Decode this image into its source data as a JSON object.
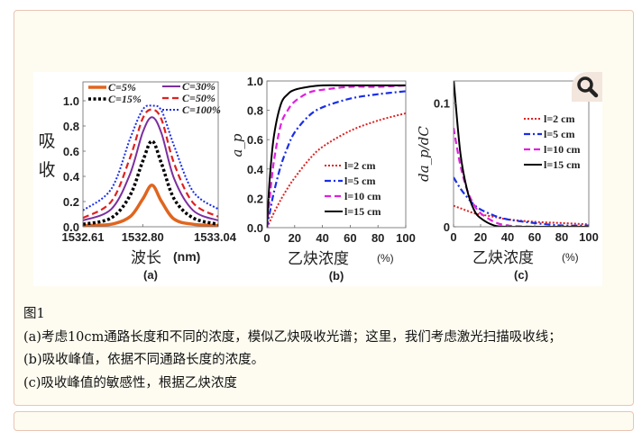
{
  "figure": {
    "zoom_icon": "magnifier-icon",
    "caption_title": "图1",
    "caption_lines": [
      "(a)考虑10cm通路长度和不同的浓度，模似乙炔吸收光谱；这里，我们考虑激光扫描吸收线；",
      "(b)吸收峰值，依据不同通路长度的浓度。",
      "(c)吸收峰值的敏感性，根据乙炔浓度"
    ]
  },
  "chart_data": [
    {
      "type": "line",
      "panel_label": "(a)",
      "xlabel": "波长",
      "xlabel_unit": "(nm)",
      "ylabel": [
        "吸",
        "收"
      ],
      "xlim": [
        1532.61,
        1533.04
      ],
      "ylim": [
        0,
        1.15
      ],
      "xticks": [
        "1532.61",
        "1532.80",
        "1533.04"
      ],
      "xtick_values": [
        1532.61,
        1532.8,
        1533.04
      ],
      "yticks": [
        "0.0",
        "0.2",
        "0.4",
        "0.6",
        "0.8",
        "1.0"
      ],
      "ytick_values": [
        0,
        0.2,
        0.4,
        0.6,
        0.8,
        1.0
      ],
      "legend": "top",
      "x": [
        1532.61,
        1532.7,
        1532.76,
        1532.8,
        1532.83,
        1532.86,
        1532.9,
        1532.96,
        1533.04
      ],
      "series": [
        {
          "name": "C=5%",
          "color": "#e0651f",
          "style": "solid-thick",
          "values": [
            0.01,
            0.02,
            0.08,
            0.22,
            0.33,
            0.2,
            0.06,
            0.02,
            0.01
          ]
        },
        {
          "name": "C=15%",
          "color": "#000000",
          "style": "dotted-thick",
          "values": [
            0.02,
            0.07,
            0.25,
            0.52,
            0.68,
            0.5,
            0.22,
            0.07,
            0.02
          ]
        },
        {
          "name": "C=30%",
          "color": "#7b2f9e",
          "style": "solid",
          "values": [
            0.05,
            0.14,
            0.42,
            0.75,
            0.87,
            0.74,
            0.38,
            0.13,
            0.05
          ]
        },
        {
          "name": "C=50%",
          "color": "#e02020",
          "style": "dashed",
          "values": [
            0.07,
            0.2,
            0.55,
            0.86,
            0.93,
            0.85,
            0.5,
            0.19,
            0.08
          ]
        },
        {
          "name": "C=100%",
          "color": "#1a2ee8",
          "style": "dotted",
          "values": [
            0.13,
            0.3,
            0.7,
            0.93,
            0.96,
            0.92,
            0.64,
            0.28,
            0.14
          ]
        }
      ]
    },
    {
      "type": "line",
      "panel_label": "(b)",
      "xlabel": "乙炔浓度",
      "xlabel_unit": "(%)",
      "ylabel": "a_p",
      "xlim": [
        0,
        100
      ],
      "ylim": [
        0,
        1.0
      ],
      "xticks": [
        "0",
        "20",
        "40",
        "60",
        "80",
        "100"
      ],
      "xtick_values": [
        0,
        20,
        40,
        60,
        80,
        100
      ],
      "yticks": [
        "0.0",
        "0.2",
        "0.4",
        "0.6",
        "0.8",
        "1.0"
      ],
      "ytick_values": [
        0,
        0.2,
        0.4,
        0.6,
        0.8,
        1.0
      ],
      "legend": "bottom-right",
      "x": [
        0,
        2,
        5,
        10,
        15,
        20,
        30,
        40,
        60,
        80,
        100
      ],
      "series": [
        {
          "name": "l=2 cm",
          "color": "#e02020",
          "style": "dotted",
          "values": [
            0,
            0.04,
            0.1,
            0.19,
            0.27,
            0.34,
            0.46,
            0.55,
            0.66,
            0.73,
            0.78
          ]
        },
        {
          "name": "l=5 cm",
          "color": "#1a2ee8",
          "style": "dashdot",
          "values": [
            0,
            0.1,
            0.24,
            0.42,
            0.55,
            0.65,
            0.76,
            0.82,
            0.88,
            0.91,
            0.93
          ]
        },
        {
          "name": "l=10 cm",
          "color": "#e020e0",
          "style": "dashed",
          "values": [
            0,
            0.2,
            0.45,
            0.7,
            0.8,
            0.86,
            0.92,
            0.94,
            0.96,
            0.96,
            0.97
          ]
        },
        {
          "name": "l=15 cm",
          "color": "#000000",
          "style": "solid",
          "values": [
            0,
            0.33,
            0.62,
            0.84,
            0.91,
            0.94,
            0.96,
            0.97,
            0.97,
            0.97,
            0.97
          ]
        }
      ]
    },
    {
      "type": "line",
      "panel_label": "(c)",
      "xlabel": "乙炔浓度",
      "xlabel_unit": "(%)",
      "ylabel": "da_p/dC",
      "xlim": [
        0,
        100
      ],
      "ylim": [
        0,
        0.118
      ],
      "xticks": [
        "0",
        "20",
        "40",
        "60",
        "80",
        "100"
      ],
      "xtick_values": [
        0,
        20,
        40,
        60,
        80,
        100
      ],
      "yticks": [
        "0",
        "0.1"
      ],
      "ytick_values": [
        0,
        0.1
      ],
      "legend": "top-right",
      "x": [
        0,
        5,
        10,
        15,
        20,
        30,
        40,
        60,
        80,
        100
      ],
      "series": [
        {
          "name": "l=2 cm",
          "color": "#e02020",
          "style": "dotted",
          "values": [
            0.017,
            0.015,
            0.013,
            0.011,
            0.01,
            0.008,
            0.006,
            0.004,
            0.003,
            0.002
          ]
        },
        {
          "name": "l=5 cm",
          "color": "#1a2ee8",
          "style": "dashdot",
          "values": [
            0.04,
            0.031,
            0.024,
            0.018,
            0.014,
            0.009,
            0.006,
            0.003,
            0.001,
            0.001
          ]
        },
        {
          "name": "l=10 cm",
          "color": "#e020e0",
          "style": "dashed",
          "values": [
            0.08,
            0.05,
            0.03,
            0.018,
            0.011,
            0.004,
            0.001,
            0,
            0,
            0
          ]
        },
        {
          "name": "l=15 cm",
          "color": "#000000",
          "style": "solid",
          "values": [
            0.12,
            0.06,
            0.03,
            0.014,
            0.007,
            0.001,
            0,
            0,
            0,
            0
          ]
        }
      ]
    }
  ]
}
